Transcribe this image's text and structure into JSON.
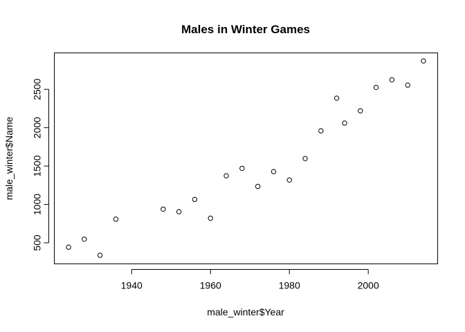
{
  "chart_data": {
    "type": "scatter",
    "title": "Males in Winter Games",
    "xlabel": "male_winter$Year",
    "ylabel": "male_winter$Name",
    "xlim": [
      1920.4,
      2017.6
    ],
    "ylim": [
      225,
      2975
    ],
    "xticks": [
      1940,
      1960,
      1980,
      2000
    ],
    "yticks": [
      500,
      1000,
      1500,
      2000,
      2500
    ],
    "grid": false,
    "points": [
      {
        "x": 1924,
        "y": 443
      },
      {
        "x": 1928,
        "y": 547
      },
      {
        "x": 1932,
        "y": 337
      },
      {
        "x": 1936,
        "y": 808
      },
      {
        "x": 1948,
        "y": 938
      },
      {
        "x": 1952,
        "y": 905
      },
      {
        "x": 1956,
        "y": 1065
      },
      {
        "x": 1960,
        "y": 820
      },
      {
        "x": 1964,
        "y": 1373
      },
      {
        "x": 1968,
        "y": 1470
      },
      {
        "x": 1972,
        "y": 1235
      },
      {
        "x": 1976,
        "y": 1428
      },
      {
        "x": 1980,
        "y": 1318
      },
      {
        "x": 1984,
        "y": 1598
      },
      {
        "x": 1988,
        "y": 1960
      },
      {
        "x": 1992,
        "y": 2385
      },
      {
        "x": 1994,
        "y": 2060
      },
      {
        "x": 1998,
        "y": 2220
      },
      {
        "x": 2002,
        "y": 2525
      },
      {
        "x": 2006,
        "y": 2625
      },
      {
        "x": 2010,
        "y": 2555
      },
      {
        "x": 2014,
        "y": 2870
      }
    ]
  }
}
